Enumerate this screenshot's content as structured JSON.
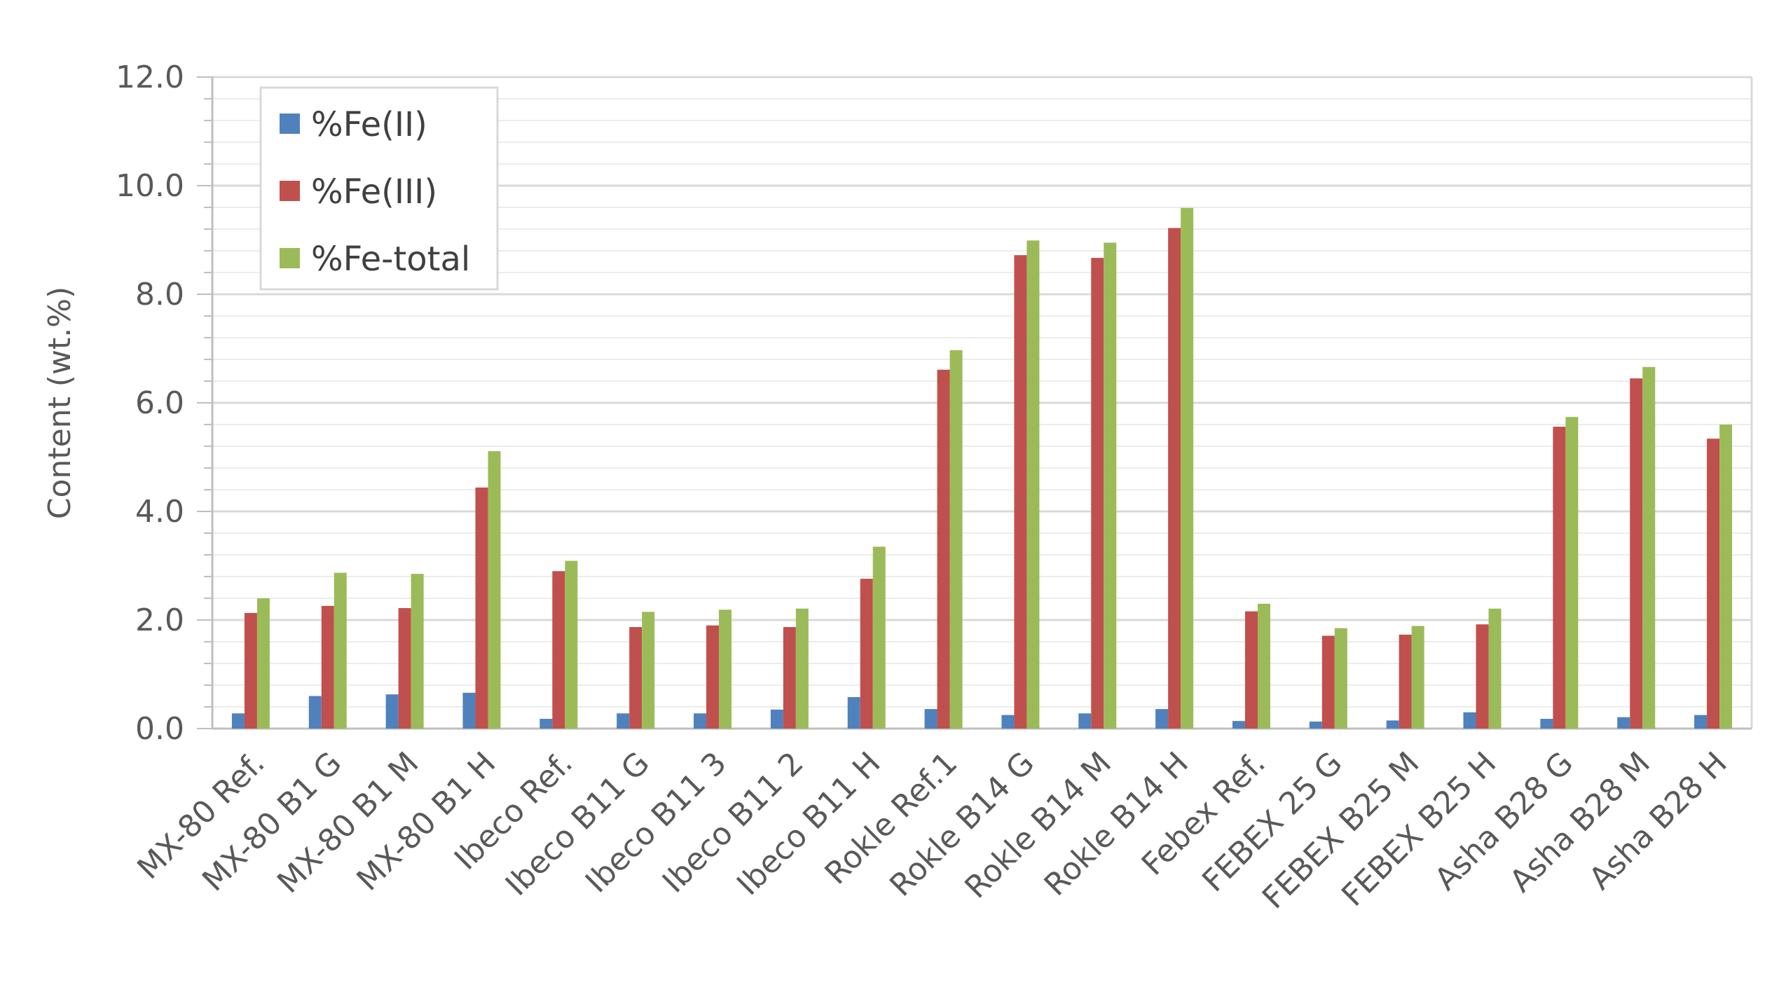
{
  "chart_data": {
    "type": "bar",
    "title": "",
    "xlabel": "",
    "ylabel": "Content (wt.%)",
    "ylim": [
      0,
      12
    ],
    "yticks": [
      "0.0",
      "2.0",
      "4.0",
      "6.0",
      "8.0",
      "10.0",
      "12.0"
    ],
    "grid": true,
    "legend_position": "top-left",
    "categories": [
      "MX-80 Ref.",
      "MX-80 B1 G",
      "MX-80 B1 M",
      "MX-80 B1 H",
      "Ibeco Ref.",
      "Ibeco B11 G",
      "Ibeco B11 3",
      "Ibeco B11 2",
      "Ibeco B11 H",
      "Rokle Ref.1",
      "Rokle B14 G",
      "Rokle B14 M",
      "Rokle B14 H",
      "Febex Ref.",
      "FEBEX 25 G",
      "FEBEX B25 M",
      "FEBEX B25 H",
      "Asha B28 G",
      "Asha B28 M",
      "Asha B28 H"
    ],
    "series": [
      {
        "name": "%Fe(II)",
        "color": "#4f81bd",
        "values": [
          0.28,
          0.6,
          0.63,
          0.66,
          0.18,
          0.28,
          0.28,
          0.35,
          0.58,
          0.36,
          0.25,
          0.28,
          0.36,
          0.14,
          0.13,
          0.15,
          0.3,
          0.18,
          0.21,
          0.25
        ]
      },
      {
        "name": "%Fe(III)",
        "color": "#c0504d",
        "values": [
          2.13,
          2.26,
          2.22,
          4.44,
          2.9,
          1.87,
          1.9,
          1.87,
          2.76,
          6.61,
          8.72,
          8.67,
          9.22,
          2.16,
          1.71,
          1.73,
          1.92,
          5.56,
          6.45,
          5.34
        ]
      },
      {
        "name": "%Fe-total",
        "color": "#9bbb59",
        "values": [
          2.4,
          2.87,
          2.85,
          5.11,
          3.09,
          2.15,
          2.19,
          2.21,
          3.35,
          6.97,
          8.99,
          8.95,
          9.59,
          2.3,
          1.85,
          1.89,
          2.21,
          5.74,
          6.66,
          5.6
        ]
      }
    ]
  }
}
